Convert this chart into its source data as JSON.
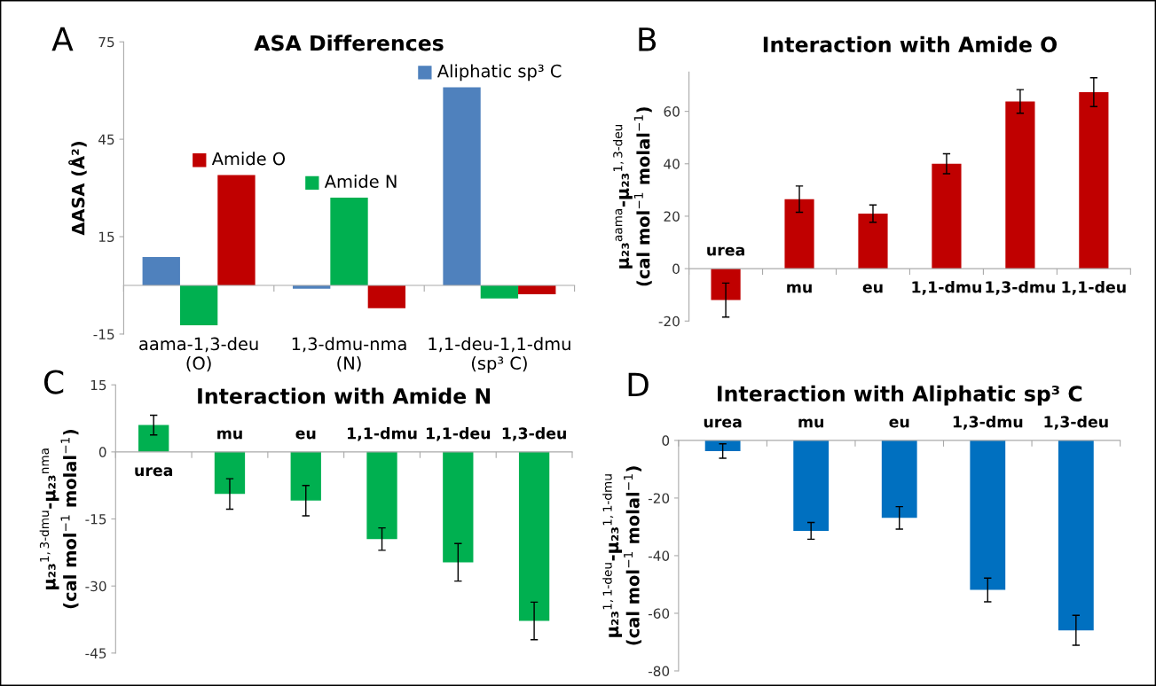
{
  "chart_data": [
    {
      "type": "bar",
      "title": "ASA Differences",
      "ylabel": "ΔASA (Å²)",
      "annotations": [
        "A"
      ],
      "categories": [
        "aama-1,3-deu\n(O)",
        "1,3-dmu-nma\n(N)",
        "1,1-deu-1,1-dmu\n(sp³ C)"
      ],
      "series": [
        {
          "name": "Aliphatic sp³ C",
          "color": "#4f81bd",
          "values": [
            8.7,
            -1,
            61
          ]
        },
        {
          "name": "Amide N",
          "color": "#00b050",
          "values": [
            -12.3,
            27,
            -4
          ]
        },
        {
          "name": "Amide O",
          "color": "#c00000",
          "values": [
            34,
            -7,
            -2.7
          ]
        }
      ],
      "ylim": [
        -15,
        75
      ],
      "yticks": [
        -15,
        15,
        45,
        75
      ],
      "grid": false,
      "legend": "top"
    },
    {
      "type": "bar",
      "title": "Interaction with Amide O",
      "ylabel": "μ₂₃$^{aama}$-μ₂₃$^{1,3-deu}$\n(cal mol$^{−1}$ molal$^{−1}$)",
      "annotations": [
        "B"
      ],
      "categories": [
        "urea",
        "mu",
        "eu",
        "1,1-dmu",
        "1,3-dmu",
        "1,1-deu"
      ],
      "series": [
        {
          "color": "#c00000",
          "values": [
            -12,
            26.5,
            21,
            40,
            63.8,
            67.3
          ],
          "errors": [
            6.5,
            5,
            3.3,
            3.8,
            4.5,
            5.5
          ]
        }
      ],
      "ylim": [
        -20,
        75
      ],
      "yticks": [
        -20,
        0,
        20,
        40,
        60
      ],
      "grid": false
    },
    {
      "type": "bar",
      "title": "Interaction with Amide N",
      "ylabel": "μ₂₃$^{1,3-dmu}$-μ₂₃$^{nma}$\n(cal mol$^{−1}$ molal$^{−1}$)",
      "annotations": [
        "C"
      ],
      "categories": [
        "urea",
        "mu",
        "eu",
        "1,1-dmu",
        "1,1-deu",
        "1,3-deu"
      ],
      "series": [
        {
          "color": "#00b050",
          "values": [
            6.0,
            -9.4,
            -10.9,
            -19.5,
            -24.7,
            -37.8
          ],
          "errors": [
            2.2,
            3.4,
            3.4,
            2.5,
            4.2,
            4.2
          ]
        }
      ],
      "ylim": [
        -45,
        15
      ],
      "yticks": [
        -45,
        -30,
        -15,
        0,
        15
      ],
      "grid": false
    },
    {
      "type": "bar",
      "title": "Interaction with Aliphatic sp³ C",
      "ylabel": "μ₂₃$^{1,1-deu}$-μ₂₃$^{1,1-dmu}$\n(cal mol$^{−1}$ molal$^{−1}$)",
      "annotations": [
        "D"
      ],
      "categories": [
        "urea",
        "mu",
        "eu",
        "1,3-dmu",
        "1,3-deu"
      ],
      "series": [
        {
          "color": "#0070c0",
          "values": [
            -3.7,
            -31.4,
            -26.9,
            -51.9,
            -65.9
          ],
          "errors": [
            2.5,
            2.9,
            3.9,
            4.1,
            5.2
          ]
        }
      ],
      "ylim": [
        -80,
        0
      ],
      "yticks": [
        -80,
        -60,
        -40,
        -20,
        0
      ],
      "grid": false
    }
  ]
}
